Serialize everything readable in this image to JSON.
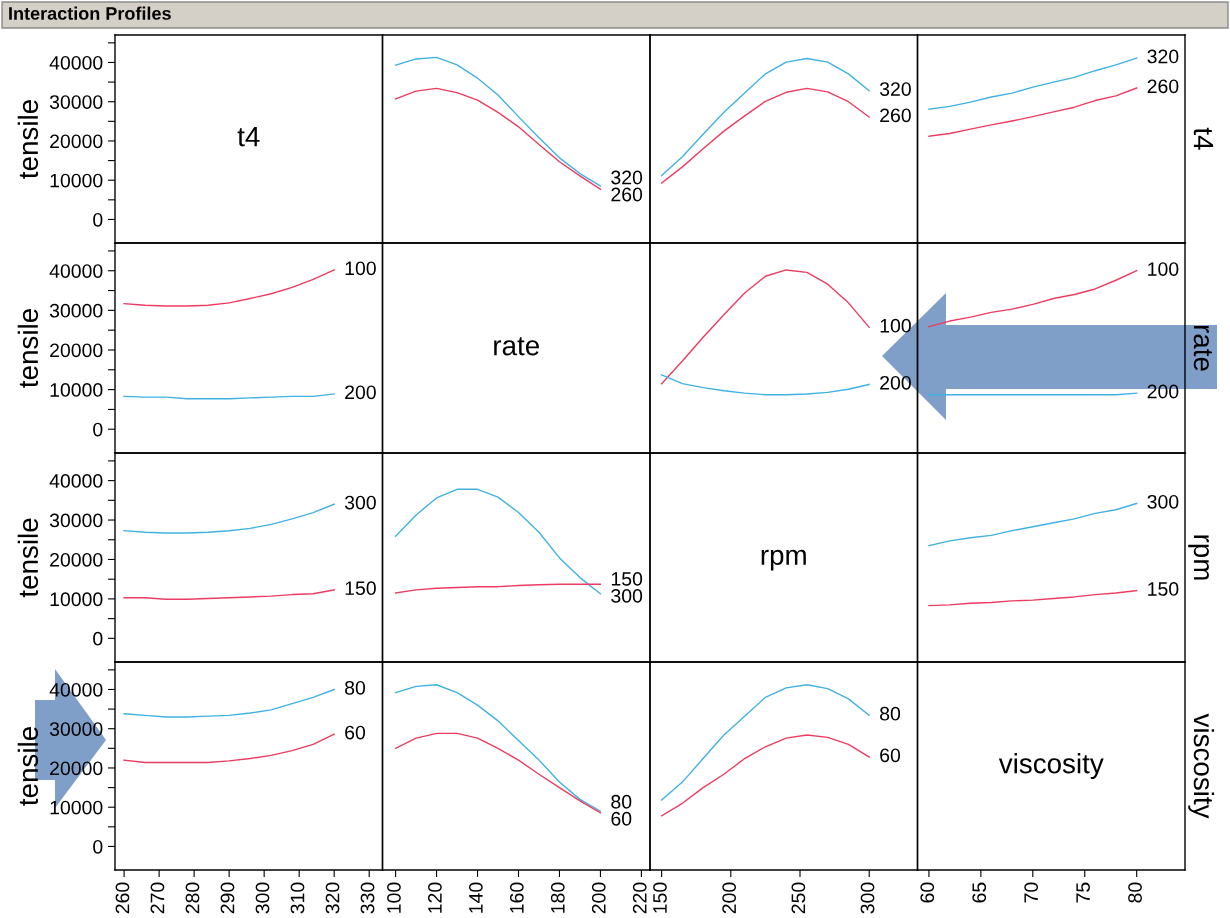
{
  "chart_data": [
    {
      "type": "line",
      "title": "Interaction Profiles",
      "annotations": [
        "t4"
      ],
      "xlim": [
        257.4,
        333.8
      ],
      "ylabel": "tensile",
      "ylim": [
        -6000,
        47000
      ],
      "yticks": [
        0,
        10000,
        20000,
        30000,
        40000,
        {
          "value": 5000,
          "label": null
        },
        {
          "value": 15000,
          "label": null
        },
        {
          "value": 25000,
          "label": null
        },
        {
          "value": 35000,
          "label": null
        },
        {
          "value": 45000,
          "label": null
        }
      ],
      "tick_labels": "y"
    },
    {
      "type": "line",
      "x": [
        100,
        110,
        120,
        130,
        140,
        150,
        160,
        170,
        180,
        190,
        200
      ],
      "xlim": [
        93.6,
        224.2
      ],
      "ylim": [
        -6000,
        47000
      ],
      "tick_labels": false,
      "series": [
        {
          "name": "320",
          "color": "#3fb2e3",
          "values": [
            39300,
            40900,
            41300,
            39400,
            36000,
            31700,
            26200,
            20800,
            15700,
            11700,
            8500
          ]
        },
        {
          "name": "260",
          "color": "#ee3b62",
          "values": [
            30700,
            32700,
            33400,
            32300,
            30400,
            27300,
            23600,
            19100,
            14700,
            11100,
            7700
          ]
        }
      ]
    },
    {
      "type": "line",
      "x": [
        150,
        165,
        180,
        195,
        210,
        225,
        240,
        255,
        270,
        285,
        300
      ],
      "xlim": [
        141.6,
        334.9
      ],
      "ylim": [
        -6000,
        47000
      ],
      "tick_labels": false,
      "series": [
        {
          "name": "320",
          "color": "#3fb2e3",
          "values": [
            11200,
            16000,
            21700,
            27300,
            32200,
            37100,
            40100,
            41000,
            40100,
            37100,
            32800
          ]
        },
        {
          "name": "260",
          "color": "#ee3b62",
          "values": [
            9300,
            13400,
            18000,
            22500,
            26400,
            30100,
            32400,
            33400,
            32500,
            30000,
            26100
          ]
        }
      ]
    },
    {
      "type": "line",
      "x": [
        60,
        62,
        64,
        66,
        68,
        70,
        72,
        74,
        76,
        78,
        80
      ],
      "xlim": [
        58.9,
        84.65
      ],
      "ylim": [
        -6000,
        47000
      ],
      "tick_labels": false,
      "y2label": "t4",
      "series": [
        {
          "name": "320",
          "color": "#3fb2e3",
          "values": [
            28100,
            28800,
            29900,
            31200,
            32200,
            33700,
            35000,
            36200,
            37900,
            39400,
            41100
          ]
        },
        {
          "name": "260",
          "color": "#ee3b62",
          "values": [
            21200,
            21900,
            23000,
            24100,
            25100,
            26200,
            27400,
            28600,
            30300,
            31500,
            33500
          ]
        }
      ]
    },
    {
      "type": "line",
      "x": [
        260,
        266,
        272,
        278,
        284,
        290,
        296,
        302,
        308,
        314,
        320
      ],
      "xlim": [
        257.4,
        333.8
      ],
      "ylim": [
        -6000,
        47000
      ],
      "ylabel": "tensile",
      "yticks": [
        0,
        10000,
        20000,
        30000,
        40000,
        {
          "value": 5000,
          "label": null
        },
        {
          "value": 15000,
          "label": null
        },
        {
          "value": 25000,
          "label": null
        },
        {
          "value": 35000,
          "label": null
        },
        {
          "value": 45000,
          "label": null
        }
      ],
      "tick_labels": "y",
      "series": [
        {
          "name": "100",
          "color": "#ee3b62",
          "values": [
            31700,
            31300,
            31100,
            31100,
            31300,
            31900,
            33000,
            34200,
            35800,
            37800,
            40200
          ]
        },
        {
          "name": "200",
          "color": "#3fb2e3",
          "values": [
            8300,
            8100,
            8100,
            7700,
            7700,
            7700,
            7900,
            8100,
            8300,
            8300,
            8900
          ]
        }
      ]
    },
    {
      "type": "line",
      "annotations": [
        "rate"
      ],
      "xlim": [
        93.6,
        224.2
      ],
      "ylim": [
        -6000,
        47000
      ],
      "tick_labels": false
    },
    {
      "type": "line",
      "x": [
        150,
        165,
        180,
        195,
        210,
        225,
        240,
        255,
        270,
        285,
        300
      ],
      "xlim": [
        141.6,
        334.9
      ],
      "ylim": [
        -6000,
        47000
      ],
      "tick_labels": false,
      "series": [
        {
          "name": "100",
          "color": "#ee3b62",
          "values": [
            11500,
            17200,
            23200,
            28900,
            34400,
            38600,
            40200,
            39600,
            36600,
            31900,
            25700
          ]
        },
        {
          "name": "200",
          "color": "#3fb2e3",
          "values": [
            13700,
            11500,
            10500,
            9700,
            9100,
            8700,
            8700,
            8900,
            9300,
            10100,
            11300
          ]
        }
      ]
    },
    {
      "type": "line",
      "x": [
        60,
        62,
        64,
        66,
        68,
        70,
        72,
        74,
        76,
        78,
        80
      ],
      "xlim": [
        58.9,
        84.65
      ],
      "ylim": [
        -6000,
        47000
      ],
      "tick_labels": false,
      "y2label": "rate",
      "series": [
        {
          "name": "100",
          "color": "#ee3b62",
          "values": [
            25900,
            27300,
            28300,
            29500,
            30300,
            31500,
            33000,
            34000,
            35400,
            37600,
            40000
          ]
        },
        {
          "name": "200",
          "color": "#3fb2e3",
          "values": [
            8700,
            8700,
            8700,
            8700,
            8700,
            8700,
            8700,
            8700,
            8700,
            8700,
            9100
          ]
        }
      ]
    },
    {
      "type": "line",
      "x": [
        260,
        266,
        272,
        278,
        284,
        290,
        296,
        302,
        308,
        314,
        320
      ],
      "xlim": [
        257.4,
        333.8
      ],
      "ylim": [
        -6000,
        47000
      ],
      "ylabel": "tensile",
      "yticks": [
        0,
        10000,
        20000,
        30000,
        40000,
        {
          "value": 5000,
          "label": null
        },
        {
          "value": 15000,
          "label": null
        },
        {
          "value": 25000,
          "label": null
        },
        {
          "value": 35000,
          "label": null
        },
        {
          "value": 45000,
          "label": null
        }
      ],
      "tick_labels": "y",
      "series": [
        {
          "name": "300",
          "color": "#3fb2e3",
          "values": [
            27300,
            26900,
            26700,
            26700,
            26900,
            27300,
            27900,
            28900,
            30300,
            31900,
            34000
          ]
        },
        {
          "name": "150",
          "color": "#ee3b62",
          "values": [
            10300,
            10300,
            9900,
            9900,
            10100,
            10300,
            10500,
            10700,
            11100,
            11300,
            12300
          ]
        }
      ]
    },
    {
      "type": "line",
      "x": [
        100,
        110,
        120,
        130,
        140,
        150,
        160,
        170,
        180,
        190,
        200
      ],
      "xlim": [
        93.6,
        224.2
      ],
      "ylim": [
        -6000,
        47000
      ],
      "tick_labels": false,
      "series": [
        {
          "name": "300",
          "color": "#3fb2e3",
          "values": [
            25900,
            31300,
            35600,
            37800,
            37800,
            35800,
            31900,
            26900,
            20400,
            15400,
            11300
          ]
        },
        {
          "name": "150",
          "color": "#ee3b62",
          "values": [
            11500,
            12300,
            12700,
            12900,
            13100,
            13100,
            13400,
            13600,
            13700,
            13700,
            13700
          ]
        }
      ]
    },
    {
      "type": "line",
      "annotations": [
        "rpm"
      ],
      "xlim": [
        141.6,
        334.9
      ],
      "ylim": [
        -6000,
        47000
      ],
      "tick_labels": false
    },
    {
      "type": "line",
      "x": [
        60,
        62,
        64,
        66,
        68,
        70,
        72,
        74,
        76,
        78,
        80
      ],
      "xlim": [
        58.9,
        84.65
      ],
      "ylim": [
        -6000,
        47000
      ],
      "tick_labels": false,
      "y2label": "rpm",
      "series": [
        {
          "name": "300",
          "color": "#3fb2e3",
          "values": [
            23500,
            24700,
            25500,
            26100,
            27300,
            28300,
            29300,
            30300,
            31700,
            32600,
            34200
          ]
        },
        {
          "name": "150",
          "color": "#ee3b62",
          "values": [
            8300,
            8500,
            8900,
            9100,
            9500,
            9700,
            10100,
            10500,
            11100,
            11500,
            12100
          ]
        }
      ]
    },
    {
      "type": "line",
      "x": [
        260,
        266,
        272,
        278,
        284,
        290,
        296,
        302,
        308,
        314,
        320
      ],
      "xlim": [
        257.4,
        333.8
      ],
      "ylim": [
        -6000,
        47000
      ],
      "ylabel": "tensile",
      "xticks": [
        260,
        270,
        280,
        290,
        300,
        310,
        320,
        330
      ],
      "yticks": [
        0,
        10000,
        20000,
        30000,
        40000,
        {
          "value": 5000,
          "label": null
        },
        {
          "value": 15000,
          "label": null
        },
        {
          "value": 25000,
          "label": null
        },
        {
          "value": 35000,
          "label": null
        },
        {
          "value": 45000,
          "label": null
        }
      ],
      "series": [
        {
          "name": "80",
          "color": "#3fb2e3",
          "values": [
            33800,
            33400,
            33000,
            33000,
            33200,
            33400,
            34000,
            34800,
            36400,
            38000,
            40000
          ]
        },
        {
          "name": "60",
          "color": "#ee3b62",
          "values": [
            22000,
            21400,
            21400,
            21400,
            21400,
            21800,
            22400,
            23200,
            24400,
            26000,
            28600
          ]
        }
      ]
    },
    {
      "type": "line",
      "x": [
        100,
        110,
        120,
        130,
        140,
        150,
        160,
        170,
        180,
        190,
        200
      ],
      "xlim": [
        93.6,
        224.2
      ],
      "ylim": [
        -6000,
        47000
      ],
      "xticks": [
        100,
        120,
        140,
        160,
        180,
        200,
        220
      ],
      "tick_labels": "x",
      "series": [
        {
          "name": "80",
          "color": "#3fb2e3",
          "values": [
            39200,
            40800,
            41200,
            39200,
            36000,
            32000,
            27000,
            22000,
            16400,
            12000,
            9000
          ]
        },
        {
          "name": "60",
          "color": "#ee3b62",
          "values": [
            25000,
            27600,
            28800,
            28800,
            27600,
            25000,
            22000,
            18400,
            15000,
            11600,
            8600
          ]
        }
      ]
    },
    {
      "type": "line",
      "x": [
        150,
        165,
        180,
        195,
        210,
        225,
        240,
        255,
        270,
        285,
        300
      ],
      "xlim": [
        141.6,
        334.9
      ],
      "ylim": [
        -6000,
        47000
      ],
      "xticks": [
        150,
        200,
        250,
        300
      ],
      "tick_labels": "x",
      "series": [
        {
          "name": "80",
          "color": "#3fb2e3",
          "values": [
            11800,
            16400,
            22400,
            28400,
            33200,
            38000,
            40400,
            41200,
            40200,
            37600,
            33400
          ]
        },
        {
          "name": "60",
          "color": "#ee3b62",
          "values": [
            7800,
            11000,
            15000,
            18400,
            22400,
            25400,
            27600,
            28400,
            27800,
            26000,
            22800
          ]
        }
      ]
    },
    {
      "type": "line",
      "annotations": [
        "viscosity"
      ],
      "xlim": [
        58.9,
        84.65
      ],
      "ylim": [
        -6000,
        47000
      ],
      "xticks": [
        60,
        65,
        70,
        75,
        80
      ],
      "tick_labels": "x",
      "y2label": "viscosity"
    }
  ]
}
